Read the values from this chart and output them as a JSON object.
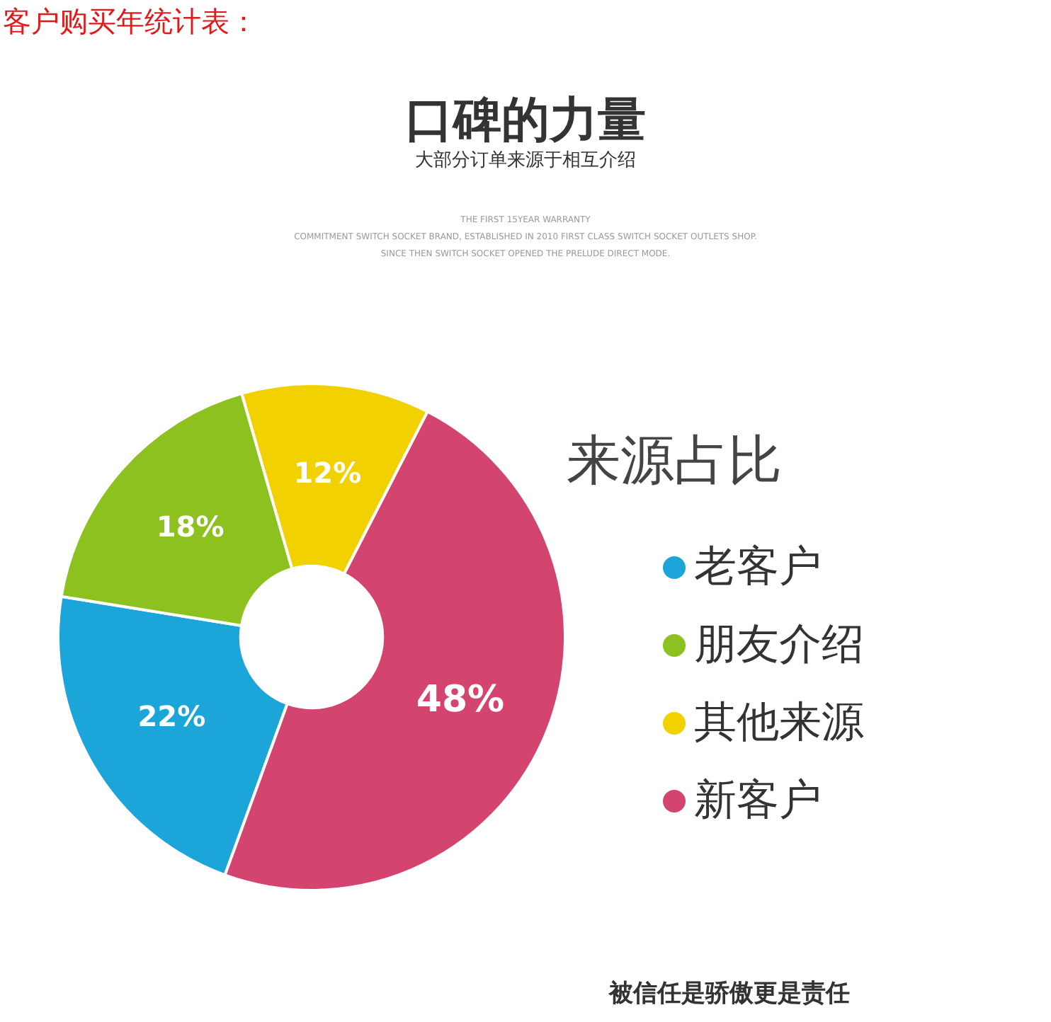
{
  "chart_data": {
    "type": "donut",
    "title": "口碑的力量",
    "subtitle": "大部分订单来源于相互介绍",
    "categories": [
      "老客户",
      "朋友介绍",
      "其他来源",
      "新客户"
    ],
    "values": [
      22,
      18,
      12,
      48
    ],
    "colors": [
      "#1ba5d9",
      "#8cc11f",
      "#f1d100",
      "#d3456f"
    ],
    "value_labels": [
      "22%",
      "18%",
      "12%",
      "48%"
    ],
    "legend": "right",
    "legend_title": "来源占比",
    "annotations": [
      "客户购买年统计表：",
      "THE FIRST 15YEAR WARRANTY",
      "COMMITMENT SWITCH SOCKET BRAND, ESTABLISHED IN 2010 FIRST CLASS SWITCH SOCKET OUTLETS SHOP.",
      "SINCE THEN SWITCH SOCKET OPENED THE PRELUDE DIRECT MODE.",
      "被信任是骄傲更是责任"
    ]
  }
}
